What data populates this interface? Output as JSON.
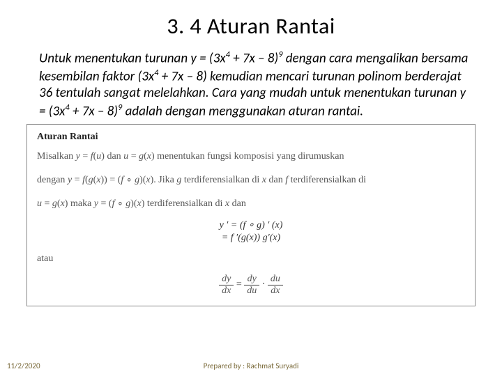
{
  "title": "3. 4 Aturan Rantai",
  "intro_html": "Untuk menentukan turunan y = (3x<span class='sup'>4</span> + 7x – 8)<span class='sup'>9</span> dengan cara mengalikan bersama kesembilan faktor (3x<span class='sup'>4</span> + 7x – 8) kemudian mencari turunan polinom berderajat 36 tentulah sangat melelahkan. Cara yang mudah untuk menentukan turunan y = (3x<span class='sup'>4</span> + 7x – 8)<span class='sup'>9</span> adalah dengan menggunakan aturan rantai.",
  "box": {
    "heading": "Aturan Rantai",
    "line1_html": "Misalkan <span class='it'>y</span> = <span class='it'>f</span>(<span class='it'>u</span>) dan <span class='it'>u</span> = <span class='it'>g</span>(<span class='it'>x</span>) menentukan fungsi komposisi yang dirumuskan",
    "line2_html": "dengan <span class='it'>y</span> = <span class='it'>f</span>(<span class='it'>g</span>(<span class='it'>x</span>)) = (<span class='it'>f</span> ∘ <span class='it'>g</span>)(<span class='it'>x</span>). Jika <span class='it'>g</span> terdiferensialkan di <span class='it'>x</span> dan <span class='it'>f</span> terdiferensialkan di",
    "line3_html": "<span class='it'>u</span> = <span class='it'>g</span>(<span class='it'>x</span>) maka <span class='it'>y</span> = (<span class='it'>f</span> ∘ <span class='it'>g</span>)(<span class='it'>x</span>) terdiferensialkan di <span class='it'>x</span> dan",
    "eq1": "y ′ = (f ∘ g) ′ (x)",
    "eq2": "= f ′(g(x)) g′(x)",
    "atau": "atau",
    "frac": {
      "dy": "dy",
      "dx": "dx",
      "du": "du"
    }
  },
  "footer": {
    "date": "11/2/2020",
    "author": "Prepared by : Rachmat Suryadi"
  },
  "colors": {
    "text": "#000000",
    "box_text": "#555555",
    "box_border": "#888888",
    "footer": "#7a6a3a",
    "bg": "#ffffff"
  }
}
